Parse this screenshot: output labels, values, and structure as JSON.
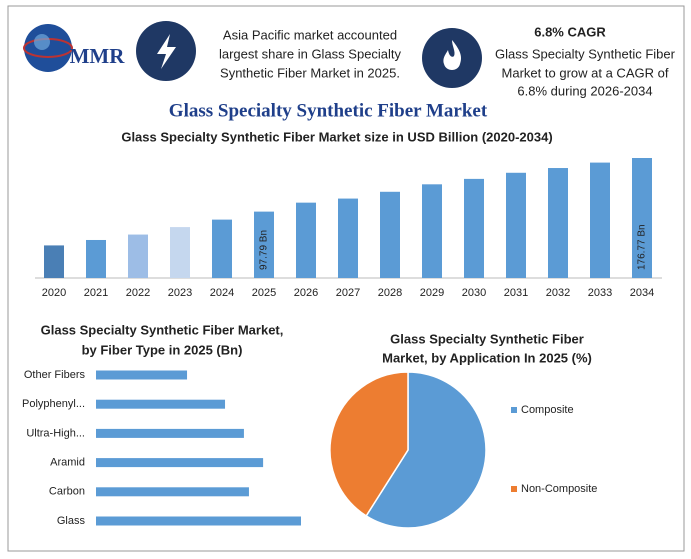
{
  "header": {
    "logo": "MMR",
    "info1": [
      "Asia Pacific market accounted",
      "largest share in Glass Specialty",
      "Synthetic Fiber Market in 2025."
    ],
    "info2_title": "6.8% CAGR",
    "info2": [
      "Glass Specialty Synthetic Fiber",
      "Market to grow at a CAGR of",
      "6.8% during 2026-2034"
    ],
    "title": "Glass Specialty Synthetic Fiber Market"
  },
  "chart_data": [
    {
      "type": "bar",
      "title": "Glass Specialty Synthetic Fiber Market size in USD Billion (2020-2034)",
      "categories": [
        "2020",
        "2021",
        "2022",
        "2023",
        "2024",
        "2025",
        "2026",
        "2027",
        "2028",
        "2029",
        "2030",
        "2031",
        "2032",
        "2033",
        "2034"
      ],
      "values": [
        48,
        56,
        64,
        75,
        86,
        97.79,
        111,
        117,
        127,
        138,
        146,
        155,
        162,
        170,
        176.77
      ],
      "value_labels": [
        null,
        null,
        null,
        null,
        null,
        "97.79 Bn",
        null,
        null,
        null,
        null,
        null,
        null,
        null,
        null,
        "176.77 Bn"
      ],
      "colors": [
        "#4a7fb5",
        "#5b9bd5",
        "#9dbde6",
        "#c5d7ee",
        "#5b9bd5",
        "#5b9bd5",
        "#5b9bd5",
        "#5b9bd5",
        "#5b9bd5",
        "#5b9bd5",
        "#5b9bd5",
        "#5b9bd5",
        "#5b9bd5",
        "#5b9bd5",
        "#5b9bd5"
      ]
    },
    {
      "type": "hbar",
      "title": [
        "Glass Specialty Synthetic Fiber Market,",
        "by  Fiber Type in 2025 (Bn)"
      ],
      "categories": [
        "Other Fibers",
        "Polyphenyl...",
        "Ultra-High...",
        "Aramid",
        "Carbon",
        "Glass"
      ],
      "values": [
        9.97,
        14.13,
        16.2,
        18.3,
        16.75,
        22.45
      ],
      "color": "#5b9bd5"
    },
    {
      "type": "pie",
      "title": [
        "Glass Specialty Synthetic Fiber",
        "Market, by Application In 2025 (%)"
      ],
      "categories": [
        "Composite",
        "Non-Composite"
      ],
      "values": [
        59,
        41
      ],
      "colors": [
        "#5b9bd5",
        "#ed7d31"
      ]
    }
  ]
}
